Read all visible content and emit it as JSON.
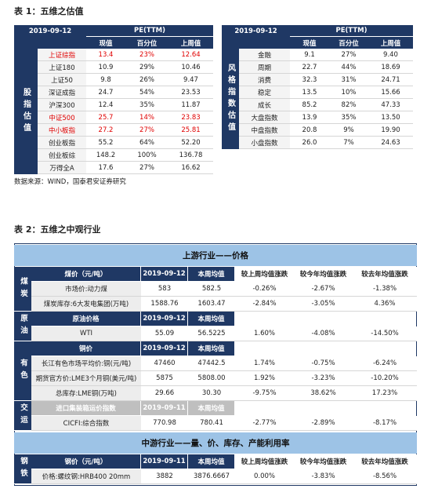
{
  "table1": {
    "title": "表 1：五维之估值",
    "source": "数据来源：WIND，国泰君安证券研究",
    "left": {
      "side_label": "股指估值",
      "date": "2019-09-12",
      "group_header": "PE(TTM)",
      "columns": [
        "现值",
        "百分位",
        "上周值"
      ],
      "rows": [
        {
          "cells": [
            "上证综指",
            "13.4",
            "23%",
            "12.64"
          ],
          "color": "#e00000"
        },
        {
          "cells": [
            "上证180",
            "10.9",
            "29%",
            "10.46"
          ]
        },
        {
          "cells": [
            "上证50",
            "9.8",
            "26%",
            "9.47"
          ]
        },
        {
          "cells": [
            "深证成指",
            "24.7",
            "54%",
            "23.53"
          ]
        },
        {
          "cells": [
            "沪深300",
            "12.4",
            "35%",
            "11.87"
          ]
        },
        {
          "cells": [
            "中证500",
            "25.7",
            "14%",
            "23.83"
          ],
          "color": "#e00000"
        },
        {
          "cells": [
            "中小板指",
            "27.2",
            "27%",
            "25.81"
          ],
          "color": "#e00000"
        },
        {
          "cells": [
            "创业板指",
            "55.2",
            "64%",
            "52.20"
          ]
        },
        {
          "cells": [
            "创业板综",
            "148.2",
            "100%",
            "136.78"
          ]
        },
        {
          "cells": [
            "万得全A",
            "17.6",
            "27%",
            "16.62"
          ]
        }
      ]
    },
    "right": {
      "side_label": "风格指数估值",
      "date": "2019-09-12",
      "group_header": "PE(TTM)",
      "columns": [
        "现值",
        "百分位",
        "上周值"
      ],
      "rows": [
        {
          "cells": [
            "金融",
            "9.1",
            "27%",
            "9.40"
          ]
        },
        {
          "cells": [
            "周期",
            "22.7",
            "44%",
            "18.69"
          ]
        },
        {
          "cells": [
            "消费",
            "32.3",
            "31%",
            "24.71"
          ]
        },
        {
          "cells": [
            "稳定",
            "13.5",
            "10%",
            "15.66"
          ]
        },
        {
          "cells": [
            "成长",
            "85.2",
            "82%",
            "47.33"
          ]
        },
        {
          "cells": [
            "大盘指数",
            "13.9",
            "35%",
            "13.50"
          ]
        },
        {
          "cells": [
            "中盘指数",
            "20.8",
            "9%",
            "19.90"
          ]
        },
        {
          "cells": [
            "小盘指数",
            "26.0",
            "7%",
            "24.63"
          ]
        }
      ]
    }
  },
  "table2": {
    "title": "表 2：五维之中观行业",
    "sections": [
      {
        "header": "上游行业——价格",
        "groups": [
          {
            "label": "煤炭",
            "header_color": "#1f3864",
            "header": [
              "煤价（元/吨）",
              "2019-09-12",
              "本周均值",
              "较上周均值涨跌",
              "较今年均值涨跌",
              "较去年均值涨跌"
            ],
            "rows": [
              [
                "市场价:动力煤",
                "583",
                "582.5",
                "-0.26%",
                "-2.67%",
                "-1.38%"
              ],
              [
                "煤炭库存:6大发电集团(万吨)",
                "1588.76",
                "1603.47",
                "-2.84%",
                "-3.05%",
                "4.36%"
              ]
            ]
          },
          {
            "label": "原油",
            "header_color": "#1f3864",
            "header": [
              "原油价格",
              "2019-09-12",
              "本周均值"
            ],
            "rows": [
              [
                "WTI",
                "55.09",
                "56.5225",
                "1.60%",
                "-4.08%",
                "-14.50%"
              ]
            ]
          },
          {
            "label": "有色",
            "header_color": "#1f3864",
            "header": [
              "铜价",
              "2019-09-12",
              "本周均值"
            ],
            "rows": [
              [
                "长江有色市场平均价:铜(元/吨)",
                "47460",
                "47442.5",
                "1.74%",
                "-0.75%",
                "-6.24%"
              ],
              [
                "期货官方价:LME3个月铜(美元/吨)",
                "5875",
                "5808.00",
                "1.92%",
                "-3.23%",
                "-10.20%"
              ],
              [
                "总库存:LME铜(万吨)",
                "29.66",
                "30.30",
                "-9.75%",
                "38.62%",
                "17.23%"
              ]
            ]
          },
          {
            "label": "交运",
            "header_color": "#bfbfbf",
            "header": [
              "进口集装箱运价指数",
              "2019-09-11",
              "本周均值"
            ],
            "rows": [
              [
                "CICFI:综合指数",
                "770.98",
                "780.41",
                "-2.77%",
                "-2.89%",
                "-8.17%"
              ]
            ]
          }
        ]
      },
      {
        "header": "中游行业——量、价、库存、产能利用率",
        "groups": [
          {
            "label": "钢铁",
            "header_color": "#1f3864",
            "header": [
              "钢价（元/吨）",
              "2019-09-11",
              "本周均值",
              "较上周均值涨跌",
              "较今年均值涨跌",
              "较去年均值涨跌"
            ],
            "rows": [
              [
                "价格:螺纹钢:HRB400 20mm",
                "3882",
                "3876.6667",
                "0.00%",
                "-3.83%",
                "-8.56%"
              ]
            ]
          }
        ]
      }
    ]
  }
}
